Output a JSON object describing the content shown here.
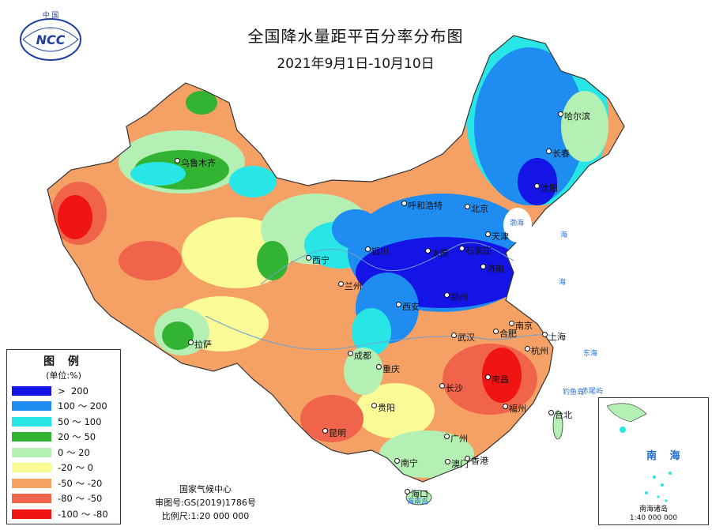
{
  "header": {
    "title": "全国降水量距平百分率分布图",
    "subtitle": "2021年9月1日-10月10日"
  },
  "logo": {
    "top_text": "中 国",
    "abbr": "NCC",
    "icon": "ncc-logo-icon"
  },
  "legend": {
    "title": "图 例",
    "unit": "(单位:%)",
    "items": [
      {
        "label": ">  200",
        "color": "#1414e6"
      },
      {
        "label": "100 ～ 200",
        "color": "#1e8cf0"
      },
      {
        "label": "50 ～ 100",
        "color": "#28e6e6"
      },
      {
        "label": "20 ～ 50",
        "color": "#32b432"
      },
      {
        "label": "0 ～ 20",
        "color": "#b4f0b4"
      },
      {
        "label": "-20 ～ 0",
        "color": "#fafa96"
      },
      {
        "label": "-50 ～ -20",
        "color": "#f5a064"
      },
      {
        "label": "-80 ～ -50",
        "color": "#f0644b"
      },
      {
        "label": "-100 ～ -80",
        "color": "#f01414"
      }
    ]
  },
  "credits": {
    "agency": "国家气候中心",
    "map_review_number": "审图号:GS(2019)1786号",
    "scale": "比例尺:1:20 000 000"
  },
  "inset": {
    "sea_name": "南 海",
    "caption_name": "南海诸岛",
    "caption_scale": "1:40 000 000"
  },
  "cities": [
    {
      "name": "哈尔滨"
    },
    {
      "name": "长春"
    },
    {
      "name": "沈阳"
    },
    {
      "name": "乌鲁木齐"
    },
    {
      "name": "呼和浩特"
    },
    {
      "name": "北京"
    },
    {
      "name": "天津"
    },
    {
      "name": "石家庄"
    },
    {
      "name": "太原"
    },
    {
      "name": "银川"
    },
    {
      "name": "西宁"
    },
    {
      "name": "兰州"
    },
    {
      "name": "济南"
    },
    {
      "name": "郑州"
    },
    {
      "name": "西安"
    },
    {
      "name": "南京"
    },
    {
      "name": "上海"
    },
    {
      "name": "合肥"
    },
    {
      "name": "武汉"
    },
    {
      "name": "杭州"
    },
    {
      "name": "成都"
    },
    {
      "name": "重庆"
    },
    {
      "name": "拉萨"
    },
    {
      "name": "长沙"
    },
    {
      "name": "南昌"
    },
    {
      "name": "贵阳"
    },
    {
      "name": "福州"
    },
    {
      "name": "台北"
    },
    {
      "name": "昆明"
    },
    {
      "name": "广州"
    },
    {
      "name": "南宁"
    },
    {
      "name": "澳门"
    },
    {
      "name": "香港"
    },
    {
      "name": "海口"
    }
  ],
  "seas": [
    {
      "name": "渤海"
    },
    {
      "name": "东海"
    },
    {
      "name": "海"
    },
    {
      "name": "海"
    },
    {
      "name": "钓鱼岛"
    },
    {
      "name": "赤尾屿"
    },
    {
      "name": "海南岛"
    }
  ]
}
